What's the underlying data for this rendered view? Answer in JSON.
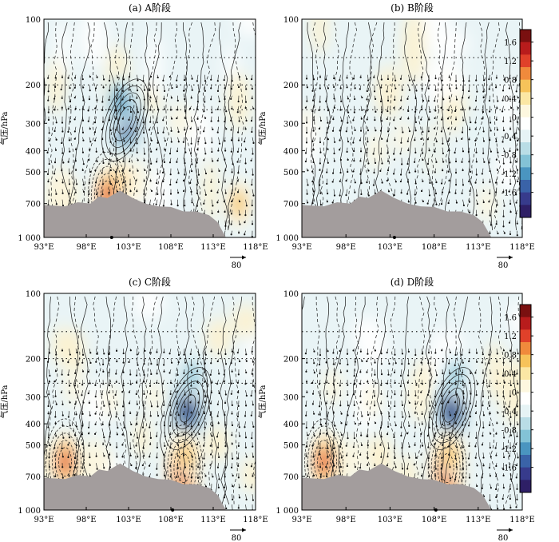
{
  "chart_data": [
    {
      "type": "heatmap",
      "panel": "a",
      "title": "(a) A阶段",
      "ylabel": "气压/hPa",
      "xticks": [
        "93°E",
        "98°E",
        "103°E",
        "108°E",
        "113°E",
        "118°E"
      ],
      "yticks": [
        "100",
        "200",
        "300",
        "400",
        "500",
        "700",
        "1 000"
      ],
      "xlim": [
        93,
        118
      ],
      "ylim": [
        1000,
        100
      ],
      "vector_scale": "80",
      "blobs": [
        {
          "lon": 102.6,
          "p": 290,
          "value": -1.6
        },
        {
          "lon": 102.0,
          "p": 240,
          "value": -1.0
        },
        {
          "lon": 102.0,
          "p": 560,
          "value": 0.8
        },
        {
          "lon": 100.5,
          "p": 640,
          "value": 1.2
        },
        {
          "lon": 104.0,
          "p": 560,
          "value": 0.6
        },
        {
          "lon": 95.0,
          "p": 600,
          "value": 0.6
        },
        {
          "lon": 116.0,
          "p": 700,
          "value": 0.8
        },
        {
          "lon": 109.0,
          "p": 290,
          "value": 0.4
        },
        {
          "lon": 97.0,
          "p": 240,
          "value": -0.4
        }
      ]
    },
    {
      "type": "heatmap",
      "panel": "b",
      "title": "(b) B阶段",
      "ylabel": "气压/hPa",
      "xticks": [
        "93°E",
        "98°E",
        "103°E",
        "108°E",
        "113°E",
        "118°E"
      ],
      "yticks": [
        "100",
        "200",
        "300",
        "400",
        "500",
        "700",
        "1 000"
      ],
      "xlim": [
        93,
        118
      ],
      "ylim": [
        1000,
        100
      ],
      "vector_scale": "80",
      "blobs": [
        {
          "lon": 97.0,
          "p": 560,
          "value": -0.6
        },
        {
          "lon": 96.0,
          "p": 640,
          "value": -0.4
        },
        {
          "lon": 101.5,
          "p": 400,
          "value": 0.4
        },
        {
          "lon": 104.5,
          "p": 350,
          "value": 0.3
        },
        {
          "lon": 114.0,
          "p": 700,
          "value": 0.4
        },
        {
          "lon": 108.0,
          "p": 400,
          "value": -0.3
        },
        {
          "lon": 113.0,
          "p": 330,
          "value": -0.3
        }
      ]
    },
    {
      "type": "heatmap",
      "panel": "c",
      "title": "(c) C阶段",
      "ylabel": "气压/hPa",
      "xticks": [
        "93°E",
        "98°E",
        "103°E",
        "108°E",
        "113°E",
        "118°E"
      ],
      "yticks": [
        "100",
        "200",
        "300",
        "400",
        "500",
        "700",
        "1 000"
      ],
      "xlim": [
        93,
        118
      ],
      "ylim": [
        1000,
        100
      ],
      "vector_scale": "80",
      "blobs": [
        {
          "lon": 110.0,
          "p": 340,
          "value": -1.6
        },
        {
          "lon": 110.5,
          "p": 240,
          "value": -0.8
        },
        {
          "lon": 109.5,
          "p": 640,
          "value": 1.6
        },
        {
          "lon": 110.0,
          "p": 560,
          "value": 0.8
        },
        {
          "lon": 95.5,
          "p": 600,
          "value": 1.2
        },
        {
          "lon": 99.0,
          "p": 580,
          "value": 0.6
        },
        {
          "lon": 96.5,
          "p": 270,
          "value": 0.4
        },
        {
          "lon": 101.0,
          "p": 310,
          "value": 0.3
        },
        {
          "lon": 106.0,
          "p": 300,
          "value": 0.3
        }
      ]
    },
    {
      "type": "heatmap",
      "panel": "d",
      "title": "(d) D阶段",
      "ylabel": "气压/hPa",
      "xticks": [
        "93°E",
        "98°E",
        "103°E",
        "108°E",
        "113°E",
        "118°E"
      ],
      "yticks": [
        "100",
        "200",
        "300",
        "400",
        "500",
        "700",
        "1 000"
      ],
      "xlim": [
        93,
        118
      ],
      "ylim": [
        1000,
        100
      ],
      "vector_scale": "80",
      "blobs": [
        {
          "lon": 110.0,
          "p": 340,
          "value": -1.6
        },
        {
          "lon": 110.5,
          "p": 240,
          "value": -0.8
        },
        {
          "lon": 109.5,
          "p": 640,
          "value": 1.6
        },
        {
          "lon": 110.0,
          "p": 560,
          "value": 0.8
        },
        {
          "lon": 95.5,
          "p": 600,
          "value": 1.2
        },
        {
          "lon": 99.0,
          "p": 580,
          "value": 0.6
        },
        {
          "lon": 96.5,
          "p": 270,
          "value": 0.4
        },
        {
          "lon": 101.0,
          "p": 310,
          "value": 0.3
        },
        {
          "lon": 106.0,
          "p": 300,
          "value": 0.3
        }
      ]
    }
  ],
  "colorbar": {
    "ticks": [
      "1.6",
      "1.2",
      "0.8",
      "0.4",
      "0",
      "-0.4",
      "-0.8",
      "-1.2",
      "-1.6"
    ],
    "colors": [
      "#7a1010",
      "#b81c1c",
      "#e0412a",
      "#f08a3c",
      "#f6c35a",
      "#fbe7a4",
      "#fdf7df",
      "#ffffff",
      "#e6f3f5",
      "#b9dde6",
      "#83c2d6",
      "#4a95c0",
      "#3a63a8",
      "#373b8c",
      "#2e1f66"
    ],
    "range": [
      -1.8,
      1.8
    ]
  },
  "colors": {
    "terrain": "#a39d9d",
    "contour": "#1a1a1a",
    "frame": "#000000"
  }
}
